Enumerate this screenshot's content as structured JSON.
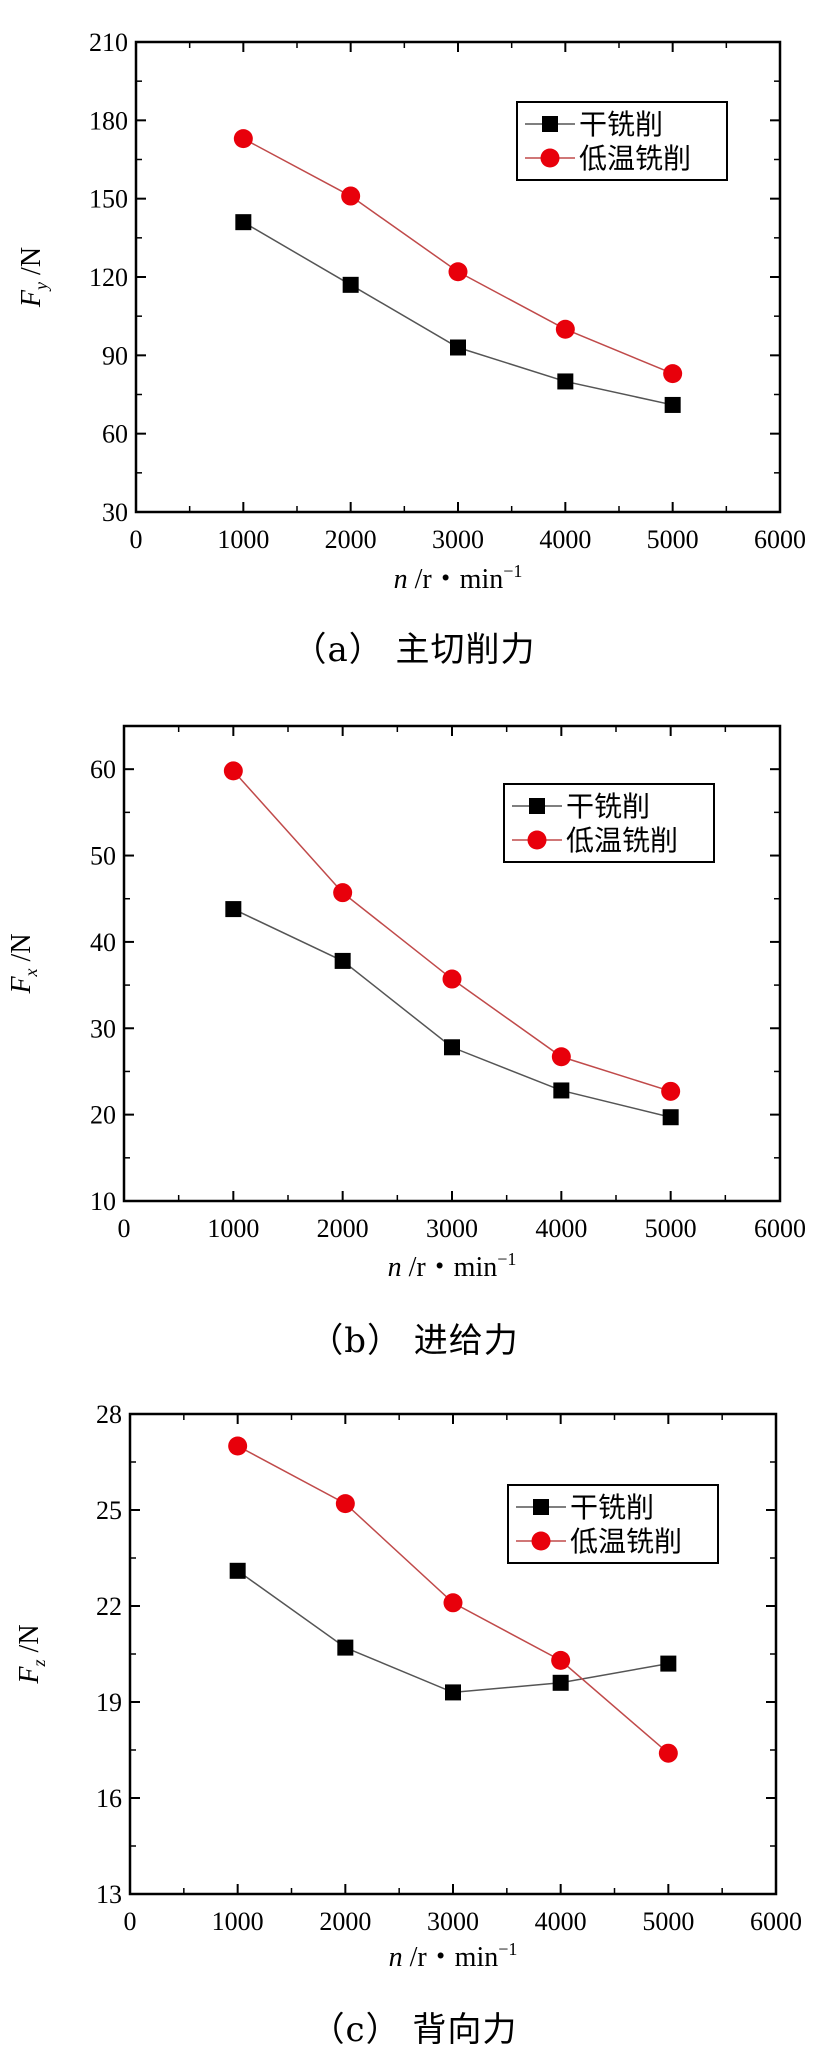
{
  "chart_data": [
    {
      "type": "line",
      "caption": "（a） 主切削力",
      "ylabel_main": "F",
      "ylabel_sub": "y",
      "ylabel_unit": "/N",
      "xlabel_main": "n",
      "xlabel_unit": "/r・min",
      "xlabel_exp": "−1",
      "xlim": [
        0,
        6000
      ],
      "xticks": [
        0,
        1000,
        2000,
        3000,
        4000,
        5000,
        6000
      ],
      "ylim": [
        30,
        210
      ],
      "yticks": [
        30,
        60,
        90,
        120,
        150,
        180,
        210
      ],
      "legend_position": "top-right",
      "x": [
        1000,
        2000,
        3000,
        4000,
        5000
      ],
      "series": [
        {
          "name": "干铣削",
          "marker": "square",
          "color": "#000000",
          "values": [
            141,
            117,
            93,
            80,
            71
          ]
        },
        {
          "name": "低温铣削",
          "marker": "circle",
          "color": "#e8000b",
          "values": [
            173,
            151,
            122,
            100,
            83
          ]
        }
      ]
    },
    {
      "type": "line",
      "caption": "（b） 进给力",
      "ylabel_main": "F",
      "ylabel_sub": "x",
      "ylabel_unit": "/N",
      "xlabel_main": "n",
      "xlabel_unit": "/r・min",
      "xlabel_exp": "−1",
      "xlim": [
        0,
        6000
      ],
      "xticks": [
        0,
        1000,
        2000,
        3000,
        4000,
        5000,
        6000
      ],
      "ylim": [
        10,
        65
      ],
      "yticks": [
        10,
        20,
        30,
        40,
        50,
        60
      ],
      "legend_position": "top-right",
      "x": [
        1000,
        2000,
        3000,
        4000,
        5000
      ],
      "series": [
        {
          "name": "干铣削",
          "marker": "square",
          "color": "#000000",
          "values": [
            43.8,
            37.8,
            27.8,
            22.8,
            19.7
          ]
        },
        {
          "name": "低温铣削",
          "marker": "circle",
          "color": "#e8000b",
          "values": [
            59.8,
            45.7,
            35.7,
            26.7,
            22.7
          ]
        }
      ]
    },
    {
      "type": "line",
      "caption": "（c） 背向力",
      "ylabel_main": "F",
      "ylabel_sub": "z",
      "ylabel_unit": "/N",
      "xlabel_main": "n",
      "xlabel_unit": "/r・min",
      "xlabel_exp": "−1",
      "xlim": [
        0,
        6000
      ],
      "xticks": [
        0,
        1000,
        2000,
        3000,
        4000,
        5000,
        6000
      ],
      "ylim": [
        13,
        28
      ],
      "yticks": [
        13,
        16,
        19,
        22,
        25,
        28
      ],
      "legend_position": "top-right",
      "x": [
        1000,
        2000,
        3000,
        4000,
        5000
      ],
      "series": [
        {
          "name": "干铣削",
          "marker": "square",
          "color": "#000000",
          "values": [
            23.1,
            20.7,
            19.3,
            19.6,
            20.2
          ]
        },
        {
          "name": "低温铣削",
          "marker": "circle",
          "color": "#e8000b",
          "values": [
            27.0,
            25.2,
            22.1,
            20.3,
            17.4
          ]
        }
      ]
    }
  ]
}
